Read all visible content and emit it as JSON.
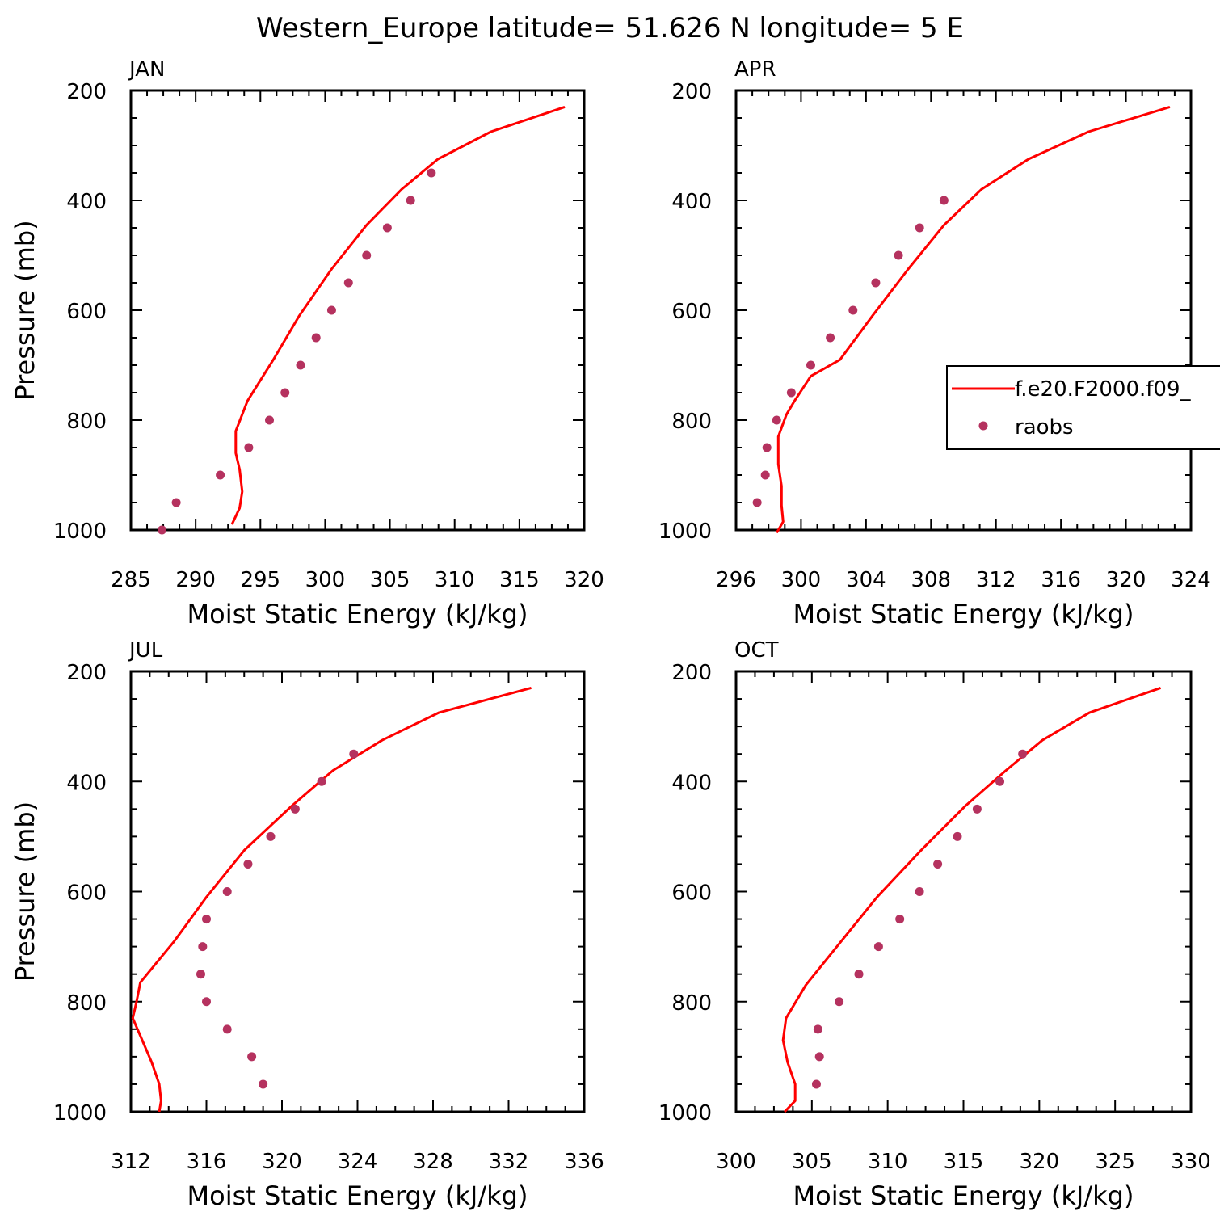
{
  "figure": {
    "suptitle": "Western_Europe  latitude= 51.626 N longitude= 5 E"
  },
  "legend": {
    "model_label": "f.e20.F2000.f09_",
    "obs_label": "raobs",
    "panel": "APR"
  },
  "colors": {
    "model": "#ff0000",
    "obs": "#b5325f",
    "axis": "#000000"
  },
  "chart_data": [
    {
      "type": "line",
      "title": "JAN",
      "xlabel": "Moist Static Energy (kJ/kg)",
      "ylabel": "Pressure (mb)",
      "xlim": [
        285,
        320
      ],
      "ylim": [
        1000,
        200
      ],
      "xticks": [
        285,
        290,
        295,
        300,
        305,
        310,
        315,
        320
      ],
      "yticks": [
        200,
        400,
        600,
        800,
        1000
      ],
      "series": [
        {
          "name": "f.e20.F2000.f09_",
          "style": "line",
          "x": [
            318.5,
            312.8,
            308.7,
            305.9,
            303.2,
            300.5,
            298.0,
            296.0,
            294.0,
            293.1,
            293.1,
            293.4,
            293.6,
            293.4,
            292.8
          ],
          "y": [
            230,
            275,
            325,
            380,
            445,
            525,
            610,
            690,
            765,
            820,
            860,
            890,
            930,
            960,
            990
          ]
        },
        {
          "name": "raobs",
          "style": "markers",
          "x": [
            308.2,
            306.6,
            304.8,
            303.2,
            301.8,
            300.5,
            299.3,
            298.1,
            296.9,
            295.7,
            294.1,
            291.9,
            288.5,
            287.4
          ],
          "y": [
            350,
            400,
            450,
            500,
            550,
            600,
            650,
            700,
            750,
            800,
            850,
            900,
            950,
            1000
          ]
        }
      ]
    },
    {
      "type": "line",
      "title": "APR",
      "xlabel": "Moist Static Energy (kJ/kg)",
      "ylabel": "",
      "xlim": [
        296,
        324
      ],
      "ylim": [
        1000,
        200
      ],
      "xticks": [
        296,
        300,
        304,
        308,
        312,
        316,
        320,
        324
      ],
      "yticks": [
        200,
        400,
        600,
        800,
        1000
      ],
      "series": [
        {
          "name": "f.e20.F2000.f09_",
          "style": "line",
          "x": [
            322.7,
            317.7,
            314.0,
            311.1,
            308.8,
            306.6,
            304.4,
            302.4,
            300.6,
            299.6,
            299.1,
            298.6,
            298.6,
            298.8,
            298.8,
            298.9,
            298.5
          ],
          "y": [
            230,
            275,
            325,
            380,
            445,
            525,
            610,
            690,
            720,
            765,
            790,
            830,
            880,
            920,
            955,
            985,
            1005
          ]
        },
        {
          "name": "raobs",
          "style": "markers",
          "x": [
            308.8,
            307.3,
            306.0,
            304.6,
            303.2,
            301.8,
            300.6,
            299.4,
            298.5,
            297.9,
            297.8,
            297.3
          ],
          "y": [
            400,
            450,
            500,
            550,
            600,
            650,
            700,
            750,
            800,
            850,
            900,
            950
          ]
        }
      ]
    },
    {
      "type": "line",
      "title": "JUL",
      "xlabel": "Moist Static Energy (kJ/kg)",
      "ylabel": "Pressure (mb)",
      "xlim": [
        312,
        336
      ],
      "ylim": [
        1000,
        200
      ],
      "xticks": [
        312,
        316,
        320,
        324,
        328,
        332,
        336
      ],
      "yticks": [
        200,
        400,
        600,
        800,
        1000
      ],
      "series": [
        {
          "name": "f.e20.F2000.f09_",
          "style": "line",
          "x": [
            333.2,
            328.3,
            325.3,
            322.7,
            320.5,
            318.0,
            316.0,
            314.3,
            312.5,
            312.3,
            312.1,
            312.6,
            313.1,
            313.5,
            313.6,
            313.5
          ],
          "y": [
            230,
            275,
            325,
            380,
            445,
            525,
            610,
            690,
            765,
            800,
            830,
            870,
            910,
            950,
            980,
            1000
          ]
        },
        {
          "name": "raobs",
          "style": "markers",
          "x": [
            323.8,
            322.1,
            320.7,
            319.4,
            318.2,
            317.1,
            316.0,
            315.8,
            315.7,
            316.0,
            317.1,
            318.4,
            319.0
          ],
          "y": [
            350,
            400,
            450,
            500,
            550,
            600,
            650,
            700,
            750,
            800,
            850,
            900,
            950
          ]
        }
      ]
    },
    {
      "type": "line",
      "title": "OCT",
      "xlabel": "Moist Static Energy (kJ/kg)",
      "ylabel": "",
      "xlim": [
        300,
        330
      ],
      "ylim": [
        1000,
        200
      ],
      "xticks": [
        300,
        305,
        310,
        315,
        320,
        325,
        330
      ],
      "yticks": [
        200,
        400,
        600,
        800,
        1000
      ],
      "series": [
        {
          "name": "f.e20.F2000.f09_",
          "style": "line",
          "x": [
            328.0,
            323.3,
            320.2,
            317.8,
            315.1,
            312.2,
            309.3,
            306.8,
            304.6,
            303.3,
            303.1,
            303.4,
            303.9,
            303.9,
            303.2
          ],
          "y": [
            230,
            275,
            325,
            380,
            445,
            525,
            610,
            695,
            770,
            830,
            870,
            910,
            950,
            980,
            1000
          ]
        },
        {
          "name": "raobs",
          "style": "markers",
          "x": [
            318.9,
            317.4,
            315.9,
            314.6,
            313.3,
            312.1,
            310.8,
            309.4,
            308.1,
            306.8,
            305.4,
            305.5,
            305.3
          ],
          "y": [
            350,
            400,
            450,
            500,
            550,
            600,
            650,
            700,
            750,
            800,
            850,
            900,
            950
          ]
        }
      ]
    }
  ]
}
